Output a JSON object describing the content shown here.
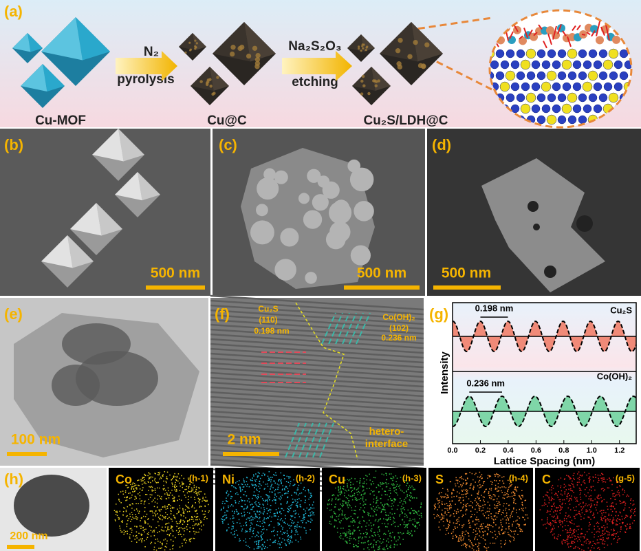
{
  "panel_a": {
    "label": "(a)",
    "stage1": "Cu-MOF",
    "step1": "N₂",
    "step1_process": "pyrolysis",
    "stage2": "Cu@C",
    "step2": "Na₂S₂O₃",
    "step2_process": "etching",
    "stage3": "Cu₂S/LDH@C"
  },
  "panel_b": {
    "label": "(b)",
    "scale_bar": "500 nm"
  },
  "panel_c": {
    "label": "(c)",
    "scale_bar": "500 nm"
  },
  "panel_d": {
    "label": "(d)",
    "scale_bar": "500 nm"
  },
  "panel_e": {
    "label": "(e)",
    "scale_bar": "100 nm"
  },
  "panel_f": {
    "label": "(f)",
    "phase1": "Cu₂S",
    "phase1_plane": "(110)",
    "phase1_spacing": "0.198 nm",
    "phase2": "Co(OH)₂",
    "phase2_plane": "(102)",
    "phase2_spacing": "0.236 nm",
    "interface_1": "hetero-",
    "interface_2": "interface",
    "scale_bar": "2 nm"
  },
  "chart_data": {
    "type": "line",
    "label": "(g)",
    "x_label": "Lattice Spacing (nm)",
    "y_label": "Intensity",
    "xlim": [
      0,
      1.32
    ],
    "xticks": [
      {
        "value": 0,
        "label": "0.0"
      },
      0.2,
      0.4,
      0.6,
      0.8,
      {
        "value": 1,
        "label": "1.0"
      },
      1.2
    ],
    "series": [
      {
        "name": "Cu₂S",
        "color": "#f08a78",
        "spacing": {
          "value": 0.198,
          "label": "0.198 nm"
        }
      },
      {
        "name": "Co(OH)₂",
        "color": "#7fd6a8",
        "spacing": {
          "value": 0.236,
          "label": "0.236 nm"
        }
      }
    ]
  },
  "panel_h": {
    "label": "(h)",
    "scale_bar": "200 nm",
    "maps": [
      {
        "element": "Co",
        "tag": "(h-1)",
        "color": "#e8d020"
      },
      {
        "element": "Ni",
        "tag": "(h-2)",
        "color": "#20b8d8"
      },
      {
        "element": "Cu",
        "tag": "(h-3)",
        "color": "#30b840"
      },
      {
        "element": "S",
        "tag": "(h-4)",
        "color": "#f08a30"
      },
      {
        "element": "C",
        "tag": "(g-5)",
        "color": "#e02020"
      }
    ]
  }
}
